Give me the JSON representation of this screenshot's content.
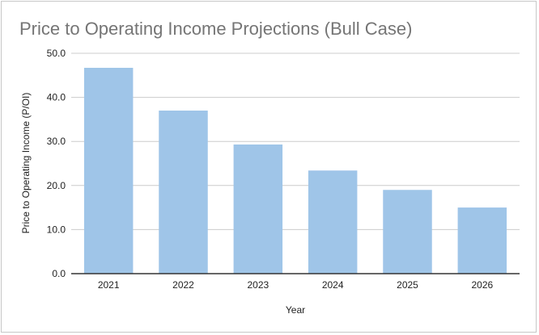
{
  "chart_data": {
    "type": "bar",
    "title": "Price to Operating Income Projections (Bull Case)",
    "xlabel": "Year",
    "ylabel": "Price to Operating Income (P/OI)",
    "categories": [
      "2021",
      "2022",
      "2023",
      "2024",
      "2025",
      "2026"
    ],
    "values": [
      46.7,
      37.0,
      29.3,
      23.4,
      19.0,
      15.0
    ],
    "ylim": [
      0,
      50
    ],
    "yticks": [
      "0.0",
      "10.0",
      "20.0",
      "30.0",
      "40.0",
      "50.0"
    ],
    "grid": true,
    "legend": "none",
    "bar_color": "#9fc5e8"
  }
}
